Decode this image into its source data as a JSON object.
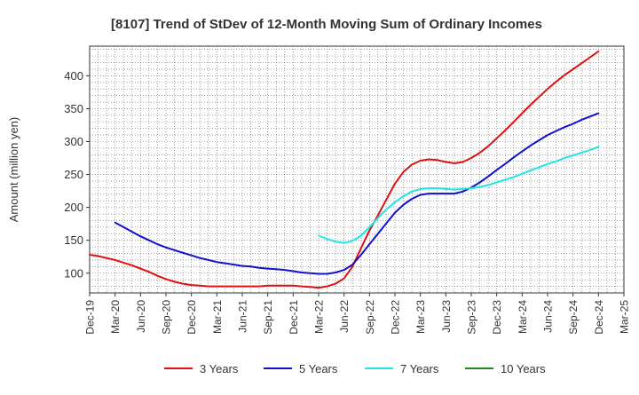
{
  "chart_data": {
    "type": "line",
    "title": "[8107]  Trend of StDev of 12-Month Moving Sum of Ordinary Incomes",
    "xlabel": "",
    "ylabel": "Amount (million yen)",
    "ylim": [
      70,
      445
    ],
    "yticks": [
      100,
      150,
      200,
      250,
      300,
      350,
      400
    ],
    "grid": true,
    "legend_position": "bottom",
    "x_tick_labels": [
      "Dec-19",
      "Mar-20",
      "Jun-20",
      "Sep-20",
      "Dec-20",
      "Mar-21",
      "Jun-21",
      "Sep-21",
      "Dec-21",
      "Mar-22",
      "Jun-22",
      "Sep-22",
      "Dec-22",
      "Mar-23",
      "Jun-23",
      "Sep-23",
      "Dec-23",
      "Mar-24",
      "Jun-24",
      "Sep-24",
      "Dec-24",
      "Mar-25"
    ],
    "x_months": [
      "Dec-19",
      "Jan-20",
      "Feb-20",
      "Mar-20",
      "Apr-20",
      "May-20",
      "Jun-20",
      "Jul-20",
      "Aug-20",
      "Sep-20",
      "Oct-20",
      "Nov-20",
      "Dec-20",
      "Jan-21",
      "Feb-21",
      "Mar-21",
      "Apr-21",
      "May-21",
      "Jun-21",
      "Jul-21",
      "Aug-21",
      "Sep-21",
      "Oct-21",
      "Nov-21",
      "Dec-21",
      "Jan-22",
      "Feb-22",
      "Mar-22",
      "Apr-22",
      "May-22",
      "Jun-22",
      "Jul-22",
      "Aug-22",
      "Sep-22",
      "Oct-22",
      "Nov-22",
      "Dec-22",
      "Jan-23",
      "Feb-23",
      "Mar-23",
      "Apr-23",
      "May-23",
      "Jun-23",
      "Jul-23",
      "Aug-23",
      "Sep-23",
      "Oct-23",
      "Nov-23",
      "Dec-23",
      "Jan-24",
      "Feb-24",
      "Mar-24",
      "Apr-24",
      "May-24",
      "Jun-24",
      "Jul-24",
      "Aug-24",
      "Sep-24",
      "Oct-24",
      "Nov-24",
      "Dec-24",
      "Jan-25",
      "Feb-25",
      "Mar-25"
    ],
    "series": [
      {
        "name": "3 Years",
        "color": "#dd1111",
        "values": [
          128,
          126,
          123,
          120,
          116,
          112,
          107,
          102,
          96,
          91,
          87,
          84,
          82,
          81,
          80,
          80,
          80,
          80,
          80,
          80,
          80,
          81,
          81,
          81,
          81,
          80,
          79,
          78,
          80,
          84,
          92,
          110,
          138,
          165,
          188,
          212,
          236,
          254,
          265,
          271,
          273,
          272,
          269,
          267,
          269,
          275,
          283,
          293,
          305,
          317,
          330,
          343,
          356,
          368,
          380,
          391,
          401,
          410,
          419,
          428,
          437,
          null,
          null,
          null
        ]
      },
      {
        "name": "5 Years",
        "color": "#1111cc",
        "values": [
          null,
          null,
          null,
          177,
          170,
          163,
          156,
          150,
          144,
          139,
          135,
          131,
          127,
          123,
          120,
          117,
          115,
          113,
          111,
          110,
          108,
          107,
          106,
          105,
          103,
          101,
          100,
          99,
          99,
          101,
          105,
          113,
          128,
          144,
          160,
          176,
          192,
          204,
          213,
          219,
          221,
          221,
          221,
          221,
          224,
          230,
          238,
          247,
          257,
          266,
          276,
          285,
          294,
          302,
          310,
          316,
          322,
          327,
          333,
          338,
          343,
          null,
          null,
          null
        ]
      },
      {
        "name": "7 Years",
        "color": "#22e5e5",
        "values": [
          null,
          null,
          null,
          null,
          null,
          null,
          null,
          null,
          null,
          null,
          null,
          null,
          null,
          null,
          null,
          null,
          null,
          null,
          null,
          null,
          null,
          null,
          null,
          null,
          null,
          null,
          null,
          157,
          152,
          148,
          146,
          149,
          157,
          170,
          184,
          197,
          208,
          217,
          224,
          228,
          229,
          229,
          228,
          227,
          228,
          229,
          231,
          234,
          238,
          242,
          246,
          251,
          256,
          261,
          266,
          270,
          275,
          279,
          283,
          287,
          292,
          null,
          null,
          null
        ]
      },
      {
        "name": "10 Years",
        "color": "#228822",
        "values": []
      }
    ]
  }
}
